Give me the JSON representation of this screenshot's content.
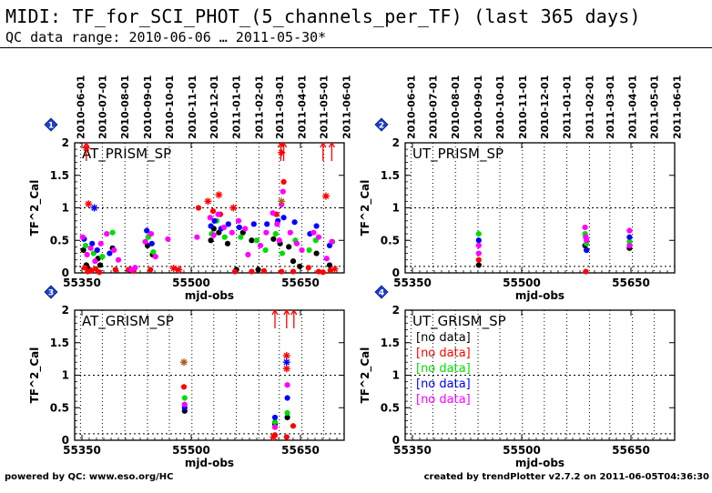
{
  "header": {
    "title": "MIDI: TF_for_SCI_PHOT_(5_channels_per_TF) (last 365 days)",
    "subtitle": "QC data range: 2010-06-06 … 2011-05-30*"
  },
  "footer": {
    "left": "powered by QC: www.eso.org/HC",
    "right": "created by trendPlotter v2.7.2 on 2011-06-05T04:36:30"
  },
  "colors": {
    "black": "#000000",
    "red": "#ff0000",
    "green": "#00dd00",
    "blue": "#0000ff",
    "magenta": "#ff00ff",
    "star": "#b05a20",
    "badge": "#1f3fcc"
  },
  "chart_data": [
    {
      "id": 1,
      "badge": "1",
      "type": "scatter",
      "label": "AT_PRISM_SP",
      "xlabel": "mjd-obs",
      "ylabel": "TF^2_Cal",
      "xlim": [
        55340,
        55710
      ],
      "ylim": [
        0,
        2
      ],
      "xticks": [
        55350,
        55500,
        55650
      ],
      "yticks": [
        0,
        0.5,
        1,
        1.5,
        2
      ],
      "date_ticks": [
        "2010-06-01",
        "2010-07-01",
        "2010-08-01",
        "2010-09-01",
        "2010-10-01",
        "2010-11-01",
        "2010-12-01",
        "2011-01-01",
        "2011-02-01",
        "2011-03-01",
        "2011-04-01",
        "2011-05-01",
        "2011-06-01"
      ],
      "date_tick_mjd": [
        55348,
        55378,
        55409,
        55440,
        55470,
        55501,
        55531,
        55562,
        55593,
        55621,
        55652,
        55682,
        55713
      ],
      "hlines": [
        1,
        0.1
      ],
      "no_data": [],
      "series": [
        {
          "color": "black",
          "x": [
            55352,
            55356,
            55360,
            55372,
            55375,
            55392,
            55416,
            55440,
            55447,
            55527,
            55531,
            55538,
            55550,
            55562,
            55571,
            55583,
            55592,
            55613,
            55622,
            55634,
            55640,
            55649,
            55672,
            55690
          ],
          "y": [
            0.35,
            0.12,
            0.05,
            0.22,
            0.12,
            0.38,
            0.05,
            0.42,
            0.28,
            0.5,
            0.68,
            0.62,
            0.45,
            0.05,
            0.62,
            0.5,
            0.05,
            0.52,
            0.45,
            0.4,
            0.18,
            0.1,
            0.3,
            0.12
          ]
        },
        {
          "color": "red",
          "x": [
            55354,
            55358,
            55363,
            55369,
            55374,
            55396,
            55414,
            55421,
            55444,
            55510,
            55530,
            55540,
            55560,
            55583,
            55600,
            55617,
            55624,
            55627,
            55640,
            55661,
            55675,
            55681,
            55691
          ],
          "y": [
            0.08,
            0.02,
            0.04,
            0.06,
            0.01,
            0.05,
            0.05,
            0.03,
            0.05,
            1.0,
            0.95,
            0.9,
            0.02,
            0.02,
            0.03,
            0.9,
            0.02,
            1.4,
            0.02,
            0.08,
            0.02,
            0.01,
            0.04
          ]
        },
        {
          "color": "green",
          "x": [
            55355,
            55366,
            55378,
            55392,
            55441,
            55448,
            55528,
            55535,
            55546,
            55568,
            55590,
            55602,
            55616,
            55625,
            55643,
            55662,
            55671,
            55694
          ],
          "y": [
            0.42,
            0.3,
            0.25,
            0.62,
            0.55,
            0.32,
            0.6,
            0.8,
            0.55,
            0.55,
            0.5,
            0.35,
            0.6,
            0.3,
            0.5,
            0.35,
            0.5,
            0.48
          ]
        },
        {
          "color": "blue",
          "x": [
            55353,
            55364,
            55371,
            55388,
            55439,
            55446,
            55527,
            55532,
            55541,
            55551,
            55566,
            55586,
            55604,
            55619,
            55627,
            55642,
            55663,
            55672,
            55690
          ],
          "y": [
            0.52,
            0.45,
            0.35,
            0.3,
            0.65,
            0.45,
            0.72,
            0.8,
            0.68,
            0.75,
            0.7,
            0.75,
            0.75,
            0.8,
            0.85,
            0.78,
            0.6,
            0.72,
            0.42
          ]
        },
        {
          "color": "magenta",
          "x": [
            55351,
            55357,
            55362,
            55368,
            55376,
            55384,
            55394,
            55400,
            55418,
            55423,
            55437,
            55445,
            55451,
            55468,
            55508,
            55526,
            55531,
            55537,
            55545,
            55556,
            55565,
            55574,
            55578,
            55595,
            55603,
            55612,
            55618,
            55621,
            55624,
            55626,
            55636,
            55645,
            55652,
            55668,
            55675,
            55686,
            55693
          ],
          "y": [
            0.55,
            0.28,
            0.38,
            0.18,
            0.45,
            0.6,
            0.35,
            0.2,
            0.05,
            0.08,
            0.48,
            0.6,
            0.25,
            0.52,
            0.55,
            0.85,
            0.58,
            0.9,
            0.7,
            0.62,
            0.8,
            0.68,
            0.28,
            0.42,
            0.62,
            0.92,
            0.75,
            0.5,
            1.05,
            1.25,
            0.62,
            0.45,
            0.35,
            0.62,
            0.55,
            0.22,
            0.48
          ]
        }
      ],
      "stars": [
        {
          "x": 55356,
          "y": 1.92,
          "color": "red"
        },
        {
          "x": 55359,
          "y": 1.06,
          "color": "red"
        },
        {
          "x": 55367,
          "y": 1.0,
          "color": "blue"
        },
        {
          "x": 55476,
          "y": 0.07,
          "color": "red"
        },
        {
          "x": 55483,
          "y": 0.05,
          "color": "red"
        },
        {
          "x": 55523,
          "y": 1.1,
          "color": "red"
        },
        {
          "x": 55538,
          "y": 1.2,
          "color": "red"
        },
        {
          "x": 55558,
          "y": 1.0,
          "color": "red"
        },
        {
          "x": 55624,
          "y": 1.1,
          "color": "star"
        },
        {
          "x": 55624,
          "y": 1.85,
          "color": "red"
        },
        {
          "x": 55685,
          "y": 1.18,
          "color": "red"
        },
        {
          "x": 55697,
          "y": 0.06,
          "color": "red"
        }
      ],
      "offscale": [
        {
          "x": 55356,
          "color": "red"
        },
        {
          "x": 55623,
          "color": "red"
        },
        {
          "x": 55627,
          "color": "red"
        },
        {
          "x": 55681,
          "color": "red"
        },
        {
          "x": 55693,
          "color": "red"
        }
      ]
    },
    {
      "id": 2,
      "badge": "2",
      "type": "scatter",
      "label": "UT_PRISM_SP",
      "xlabel": "mjd-obs",
      "ylabel": "TF^2_Cal",
      "xlim": [
        55340,
        55710
      ],
      "ylim": [
        0,
        2
      ],
      "xticks": [
        55350,
        55500,
        55650
      ],
      "yticks": [
        0,
        0.5,
        1,
        1.5,
        2
      ],
      "date_ticks": [
        "2010-06-01",
        "2010-07-01",
        "2010-08-01",
        "2010-09-01",
        "2010-10-01",
        "2010-11-01",
        "2010-12-01",
        "2011-01-01",
        "2011-02-01",
        "2011-03-01",
        "2011-04-01",
        "2011-05-01",
        "2011-06-01"
      ],
      "date_tick_mjd": [
        55348,
        55378,
        55409,
        55440,
        55470,
        55501,
        55531,
        55562,
        55593,
        55621,
        55652,
        55682,
        55713
      ],
      "hlines": [
        1,
        0.1
      ],
      "no_data": [],
      "series": [
        {
          "color": "black",
          "x": [
            55441,
            55587,
            55589,
            55648
          ],
          "y": [
            0.12,
            0.42,
            0.35,
            0.38
          ]
        },
        {
          "color": "red",
          "x": [
            55441,
            55588
          ],
          "y": [
            0.2,
            0.02
          ]
        },
        {
          "color": "green",
          "x": [
            55441,
            55587,
            55589,
            55648
          ],
          "y": [
            0.6,
            0.6,
            0.45,
            0.48
          ]
        },
        {
          "color": "blue",
          "x": [
            55441,
            55588,
            55589,
            55648
          ],
          "y": [
            0.5,
            0.55,
            0.35,
            0.55
          ]
        },
        {
          "color": "magenta",
          "x": [
            55441,
            55441,
            55587,
            55588,
            55589,
            55648,
            55648
          ],
          "y": [
            0.42,
            0.3,
            0.7,
            0.55,
            0.5,
            0.65,
            0.42
          ]
        }
      ],
      "stars": [],
      "offscale": []
    },
    {
      "id": 3,
      "badge": "3",
      "type": "scatter",
      "label": "AT_GRISM_SP",
      "xlabel": "mjd-obs",
      "ylabel": "TF^2_Cal",
      "xlim": [
        55340,
        55710
      ],
      "ylim": [
        0,
        2
      ],
      "xticks": [
        55350,
        55500,
        55650
      ],
      "yticks": [
        0,
        0.5,
        1,
        1.5,
        2
      ],
      "date_ticks": [],
      "date_tick_mjd": [],
      "hlines": [
        1,
        0.1
      ],
      "no_data": [],
      "series": [
        {
          "color": "black",
          "x": [
            55491,
            55615,
            55632
          ],
          "y": [
            0.45,
            0.25,
            0.35
          ]
        },
        {
          "color": "red",
          "x": [
            55490,
            55615,
            55631,
            55640
          ],
          "y": [
            0.82,
            0.08,
            0.05,
            0.22
          ]
        },
        {
          "color": "green",
          "x": [
            55491,
            55615,
            55632
          ],
          "y": [
            0.65,
            0.28,
            0.42
          ]
        },
        {
          "color": "blue",
          "x": [
            55491,
            55615,
            55632
          ],
          "y": [
            0.5,
            0.35,
            0.65
          ]
        },
        {
          "color": "magenta",
          "x": [
            55491,
            55615,
            55632
          ],
          "y": [
            0.55,
            0.2,
            0.85
          ]
        }
      ],
      "stars": [
        {
          "x": 55490,
          "y": 1.2,
          "color": "star"
        },
        {
          "x": 55613,
          "y": 0.05,
          "color": "red"
        },
        {
          "x": 55631,
          "y": 1.3,
          "color": "red"
        },
        {
          "x": 55631,
          "y": 1.1,
          "color": "red"
        },
        {
          "x": 55631,
          "y": 1.2,
          "color": "blue"
        }
      ],
      "offscale": [
        {
          "x": 55615,
          "color": "red"
        },
        {
          "x": 55631,
          "color": "red"
        },
        {
          "x": 55641,
          "color": "red"
        }
      ]
    },
    {
      "id": 4,
      "badge": "4",
      "type": "scatter",
      "label": "UT_GRISM_SP",
      "xlabel": "mjd-obs",
      "ylabel": "TF^2_Cal",
      "xlim": [
        55340,
        55710
      ],
      "ylim": [
        0,
        2
      ],
      "xticks": [
        55350,
        55500,
        55650
      ],
      "yticks": [
        0,
        0.5,
        1,
        1.5,
        2
      ],
      "date_ticks": [],
      "date_tick_mjd": [],
      "hlines": [
        1,
        0.1
      ],
      "no_data": [
        {
          "text": "no data",
          "color": "black"
        },
        {
          "text": "no data",
          "color": "red"
        },
        {
          "text": "no data",
          "color": "green"
        },
        {
          "text": "no data",
          "color": "blue"
        },
        {
          "text": "no data",
          "color": "magenta"
        }
      ],
      "series": [],
      "stars": [],
      "offscale": []
    }
  ]
}
